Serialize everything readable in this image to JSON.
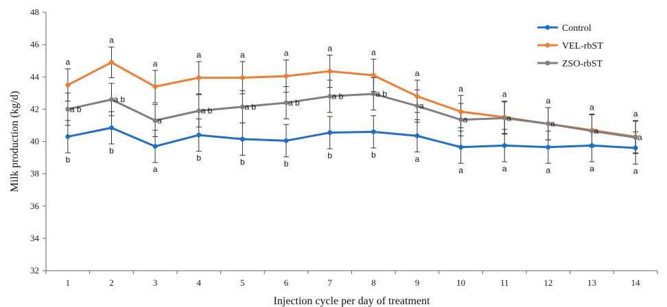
{
  "chart_data": {
    "type": "line",
    "xlabel": "Injection cycle per day of treatment",
    "ylabel": "Milk production (kg/d)",
    "x": [
      1,
      2,
      3,
      4,
      5,
      6,
      7,
      8,
      9,
      10,
      11,
      12,
      13,
      14
    ],
    "ylim": [
      32,
      48
    ],
    "yticks": [
      32,
      34,
      36,
      38,
      40,
      42,
      44,
      46,
      48
    ],
    "grid": false,
    "legend_position": "top-right",
    "series": [
      {
        "name": "Control",
        "color": "#1f6fc5",
        "values": [
          40.3,
          40.85,
          39.7,
          40.4,
          40.15,
          40.05,
          40.55,
          40.6,
          40.35,
          39.65,
          39.75,
          39.65,
          39.75,
          39.6
        ],
        "errors": [
          1.0,
          1.0,
          1.0,
          1.0,
          1.0,
          1.0,
          1.0,
          1.0,
          1.0,
          1.0,
          1.0,
          1.0,
          1.0,
          1.0
        ],
        "letters": [
          "b",
          "b",
          "a",
          "b",
          "b",
          "b",
          "b",
          "b",
          "a",
          "a",
          "a",
          "a",
          "a",
          "a"
        ]
      },
      {
        "name": "VEL-rbST",
        "color": "#ed7d31",
        "values": [
          43.5,
          44.9,
          43.4,
          43.95,
          43.95,
          44.05,
          44.35,
          44.1,
          42.8,
          41.85,
          41.5,
          41.1,
          40.7,
          40.3
        ],
        "errors": [
          1.0,
          0.95,
          1.0,
          1.0,
          1.0,
          1.0,
          1.0,
          1.0,
          1.0,
          1.0,
          1.0,
          1.0,
          1.0,
          1.0
        ],
        "letters": [
          "a",
          "a",
          "a",
          "a",
          "a",
          "a",
          "a",
          "a",
          "a",
          "a",
          "a",
          "a",
          "a",
          "a"
        ]
      },
      {
        "name": "ZSO-rbST",
        "color": "#7f7f7f",
        "values": [
          42.0,
          42.6,
          41.3,
          41.9,
          42.15,
          42.4,
          42.8,
          42.95,
          42.2,
          41.35,
          41.45,
          41.1,
          40.65,
          40.25
        ],
        "errors": [
          1.0,
          1.0,
          1.0,
          1.0,
          1.0,
          1.0,
          1.0,
          1.0,
          1.0,
          1.0,
          1.0,
          1.0,
          1.0,
          1.0
        ],
        "letters": [
          "a b",
          "a b",
          "a",
          "a b",
          "a b",
          "a b",
          "a b",
          "a b",
          "a",
          "a",
          "a",
          "a",
          "a",
          "a"
        ]
      }
    ]
  }
}
